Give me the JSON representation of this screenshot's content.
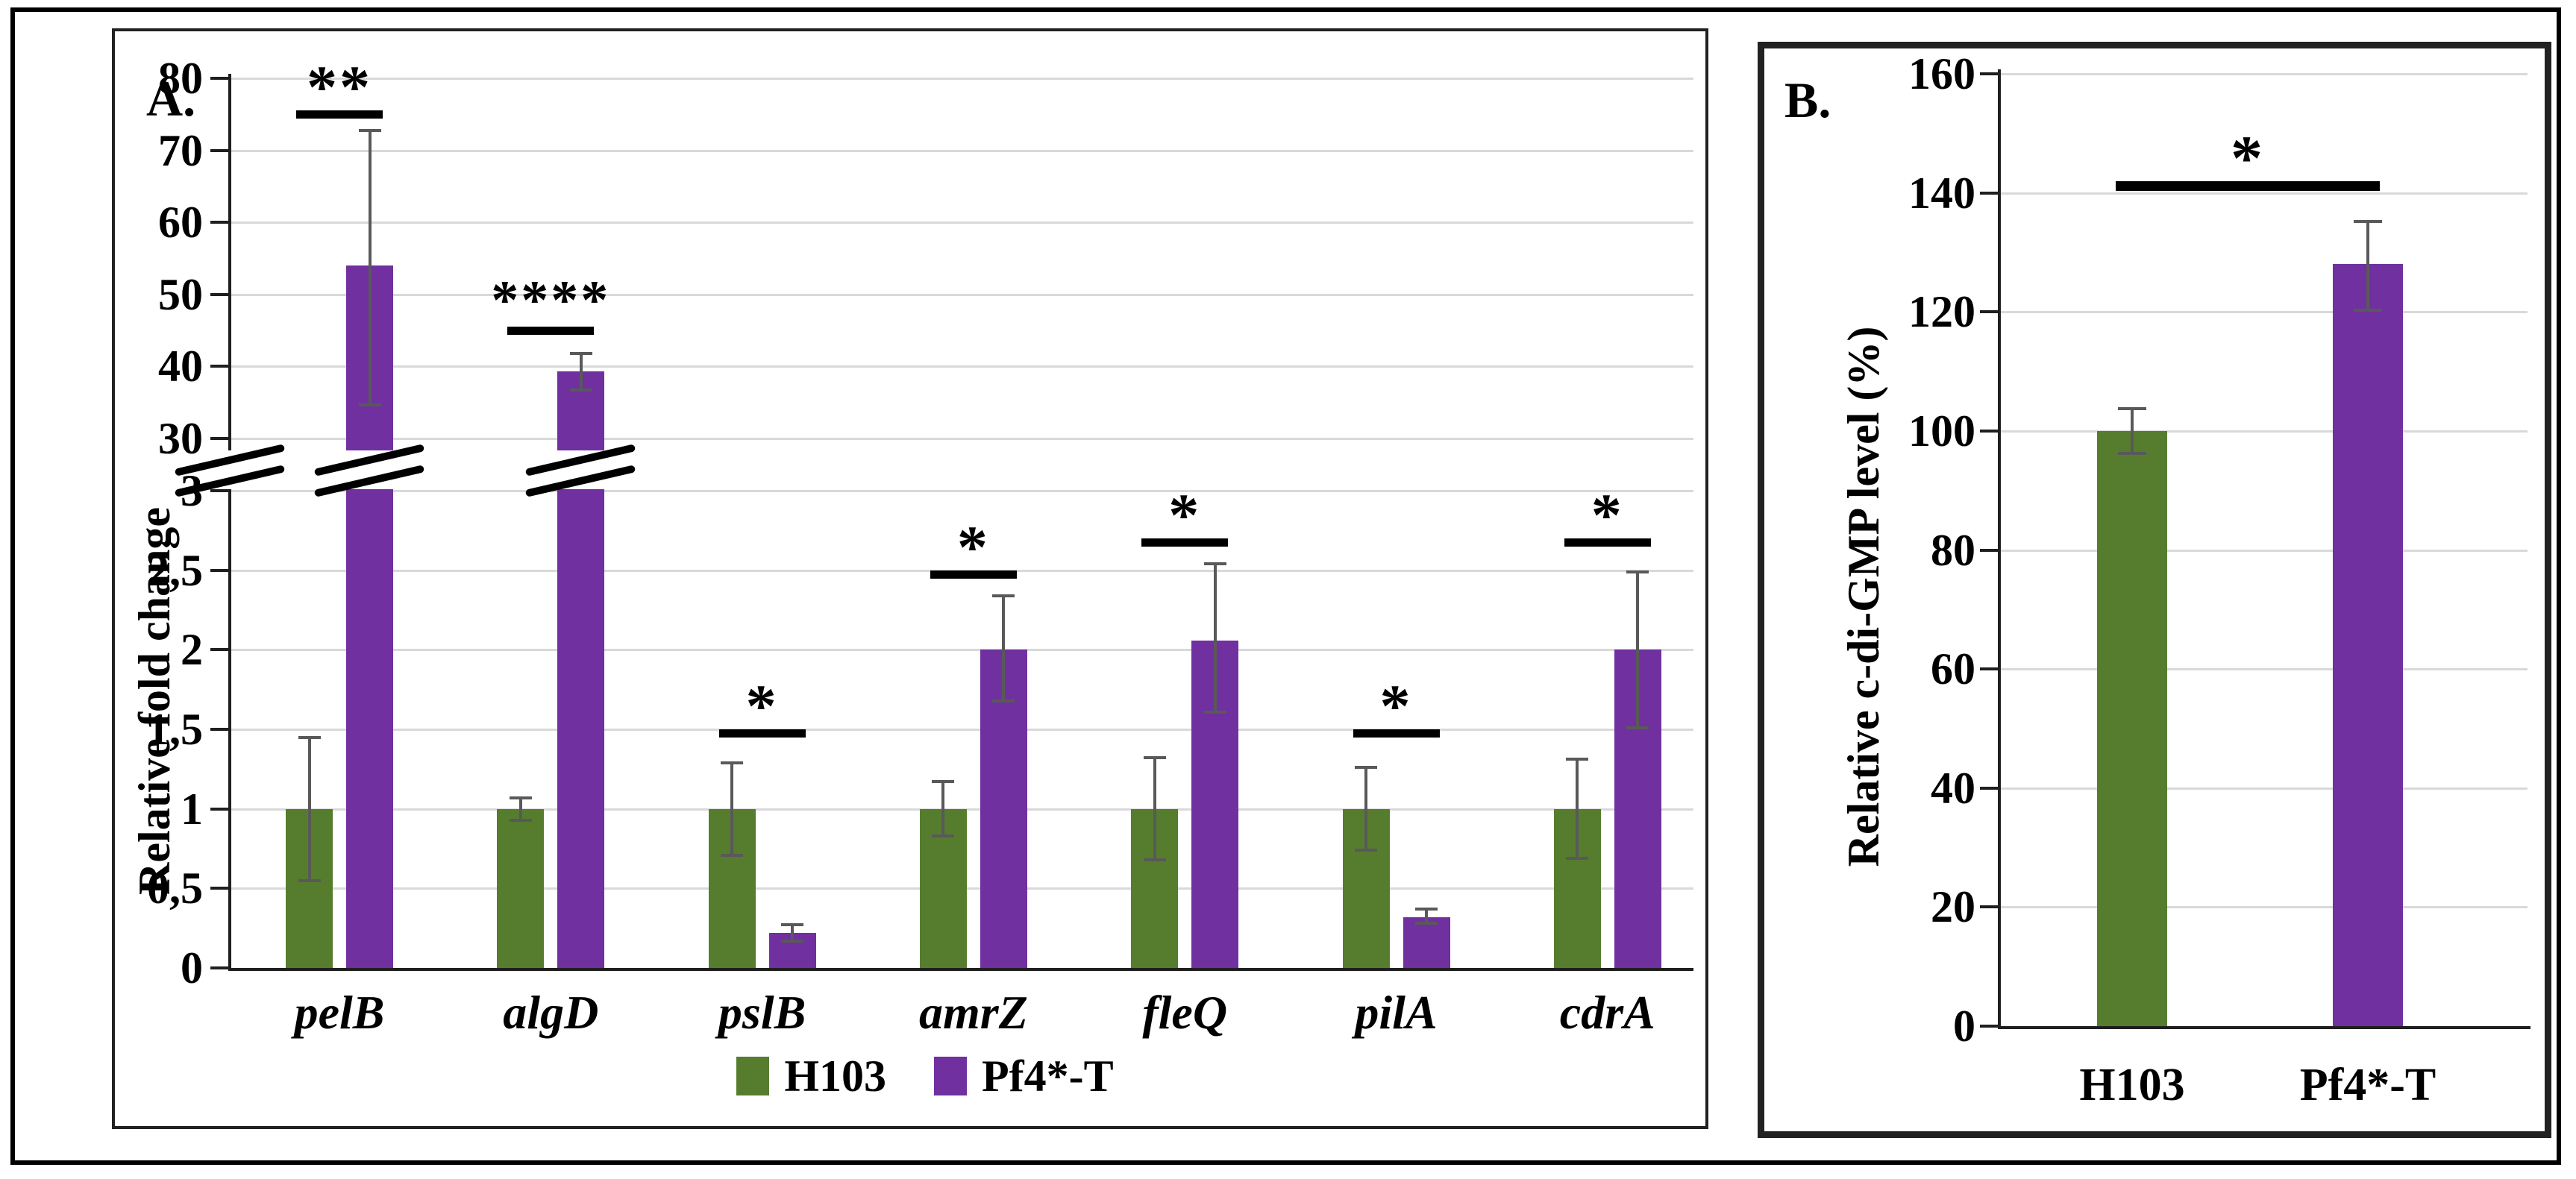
{
  "figure": {
    "panel_a_letter": "A.",
    "panel_b_letter": "B."
  },
  "colors": {
    "h103_green": "#567d2e",
    "pf4_purple": "#7030a0",
    "error_bar": "#595959",
    "gridline": "#d9d9d9",
    "axis": "#1f1f1f"
  },
  "legend": {
    "items": [
      {
        "label": "H103",
        "color": "#567d2e"
      },
      {
        "label": "Pf4*-T",
        "color": "#7030a0"
      }
    ]
  },
  "chart_data": [
    {
      "id": "panel_a",
      "type": "bar",
      "panel_letter": "A.",
      "ylabel": "Relative fold change",
      "categories": [
        "pelB",
        "algD",
        "pslB",
        "amrZ",
        "fleQ",
        "pilA",
        "cdrA"
      ],
      "axis_break": {
        "lower_ticks": [
          {
            "v": 0,
            "label": "0"
          },
          {
            "v": 0.5,
            "label": "0,5"
          },
          {
            "v": 1,
            "label": "1"
          },
          {
            "v": 1.5,
            "label": "1,5"
          },
          {
            "v": 2,
            "label": "2"
          },
          {
            "v": 2.5,
            "label": "2,5"
          },
          {
            "v": 3,
            "label": "3"
          }
        ],
        "upper_ticks": [
          {
            "v": 30,
            "label": "30"
          },
          {
            "v": 40,
            "label": "40"
          },
          {
            "v": 50,
            "label": "50"
          },
          {
            "v": 60,
            "label": "60"
          },
          {
            "v": 70,
            "label": "70"
          },
          {
            "v": 80,
            "label": "80"
          }
        ],
        "lower_range": [
          0,
          3
        ],
        "upper_range": [
          30,
          80
        ]
      },
      "series": [
        {
          "name": "H103",
          "color": "#567d2e",
          "values": [
            1.0,
            1.0,
            1.0,
            1.0,
            1.0,
            1.0,
            1.0
          ],
          "err_low": [
            0.54,
            0.92,
            0.7,
            0.82,
            0.67,
            0.73,
            0.68
          ],
          "err_high": [
            1.46,
            1.08,
            1.3,
            1.18,
            1.33,
            1.27,
            1.32
          ]
        },
        {
          "name": "Pf4*-T",
          "color": "#7030a0",
          "values": [
            54,
            39.3,
            0.22,
            2.0,
            2.06,
            0.32,
            2.0
          ],
          "err_low": [
            34.5,
            36.5,
            0.16,
            1.67,
            1.6,
            0.27,
            1.5
          ],
          "err_high": [
            73,
            42,
            0.28,
            2.35,
            2.55,
            0.38,
            2.5
          ]
        }
      ],
      "significance": [
        {
          "category": "pelB",
          "label": "**",
          "y": 75.5
        },
        {
          "category": "algD",
          "label": "****",
          "y": 45.5
        },
        {
          "category": "pslB",
          "label": "*",
          "y": 1.5
        },
        {
          "category": "amrZ",
          "label": "*",
          "y": 2.5
        },
        {
          "category": "fleQ",
          "label": "*",
          "y": 2.7
        },
        {
          "category": "pilA",
          "label": "*",
          "y": 1.5
        },
        {
          "category": "cdrA",
          "label": "*",
          "y": 2.7
        }
      ],
      "legend_position": "bottom",
      "grid": true
    },
    {
      "id": "panel_b",
      "type": "bar",
      "panel_letter": "B.",
      "ylabel": "Relative c-di-GMP level (%)",
      "categories": [
        "H103",
        "Pf4*-T"
      ],
      "colors": [
        "#567d2e",
        "#7030a0"
      ],
      "values": [
        100,
        128
      ],
      "err_low": [
        96,
        120
      ],
      "err_high": [
        104,
        135.5
      ],
      "ylim": [
        0,
        160
      ],
      "ytick_labels": [
        "0",
        "20",
        "40",
        "60",
        "80",
        "100",
        "120",
        "140",
        "160"
      ],
      "ytick_values": [
        0,
        20,
        40,
        60,
        80,
        100,
        120,
        140,
        160
      ],
      "significance": [
        {
          "between": [
            "H103",
            "Pf4*-T"
          ],
          "label": "*",
          "y": 142
        }
      ],
      "grid": true
    }
  ]
}
